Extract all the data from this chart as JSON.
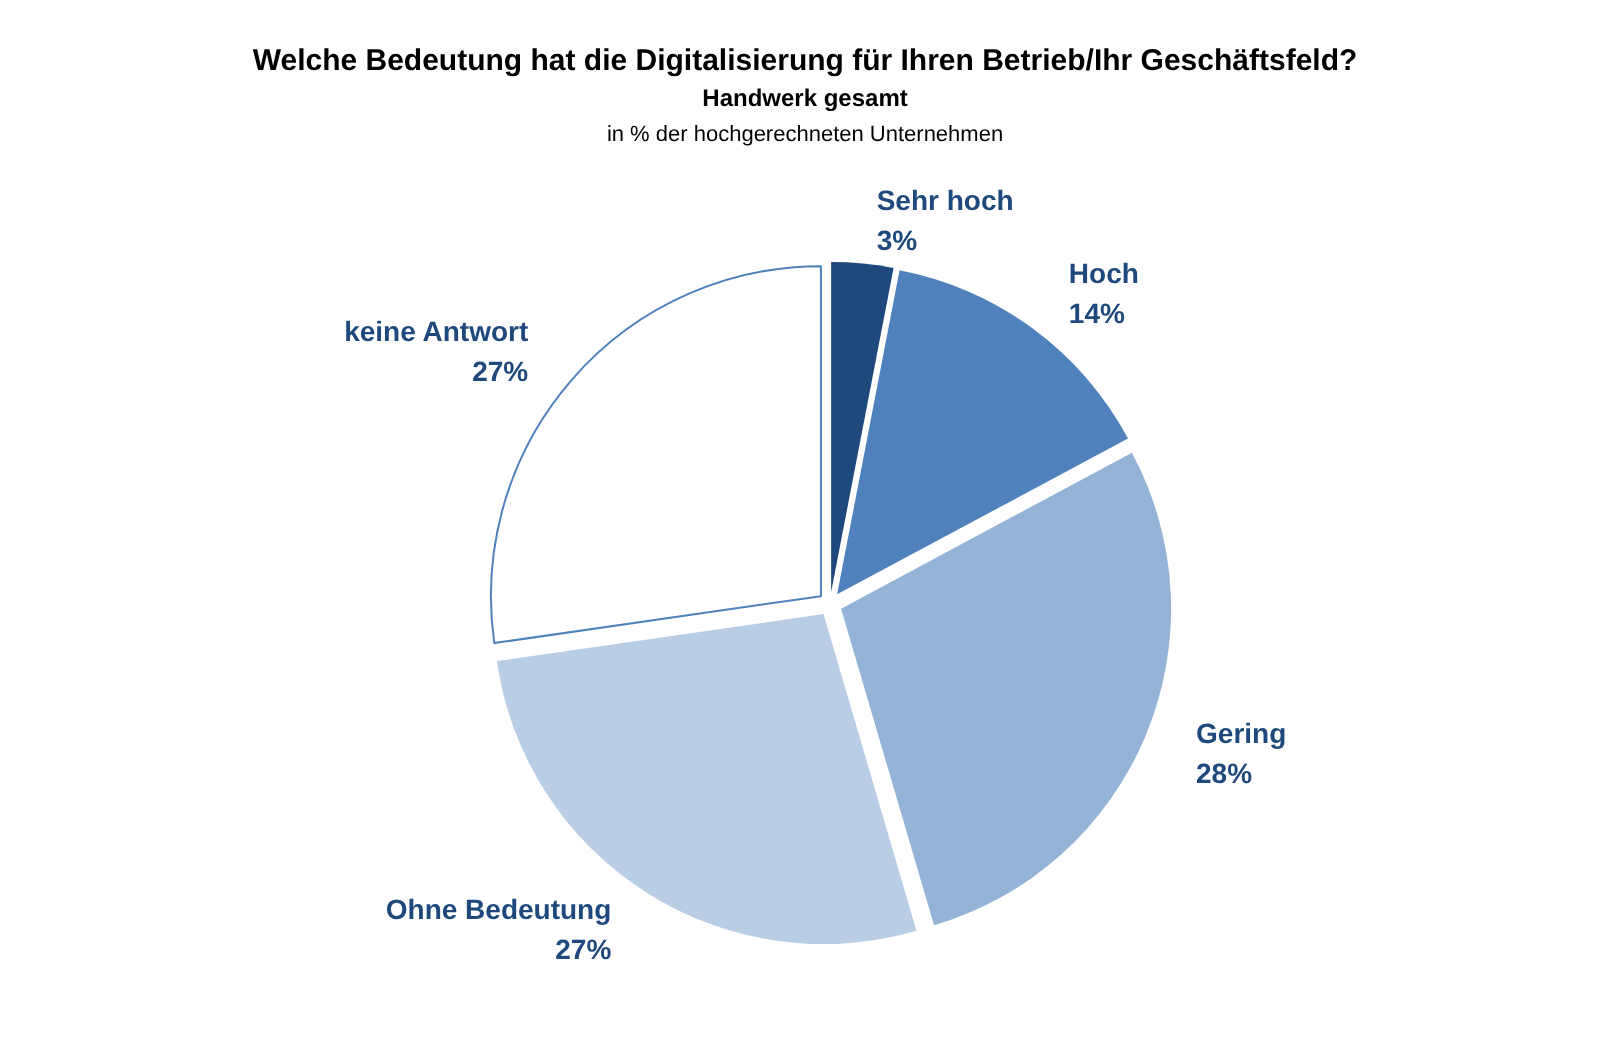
{
  "chart_data": {
    "type": "pie",
    "title": "Welche Bedeutung hat die Digitalisierung für Ihren Betrieb/Ihr Geschäftsfeld?",
    "subtitle": "Handwerk gesamt",
    "annotations": [
      "in % der hochgerechneten Unternehmen"
    ],
    "categories": [
      "Sehr hoch",
      "Hoch",
      "Gering",
      "Ohne Bedeutung",
      "keine Antwort"
    ],
    "values": [
      3,
      14,
      28,
      27,
      27
    ],
    "value_labels": [
      "3%",
      "14%",
      "28%",
      "27%",
      "27%"
    ],
    "colors": [
      "#1f497d",
      "#4f81bd",
      "#95b3d7",
      "#b9cde5",
      "#ffffff"
    ],
    "legend": false
  }
}
